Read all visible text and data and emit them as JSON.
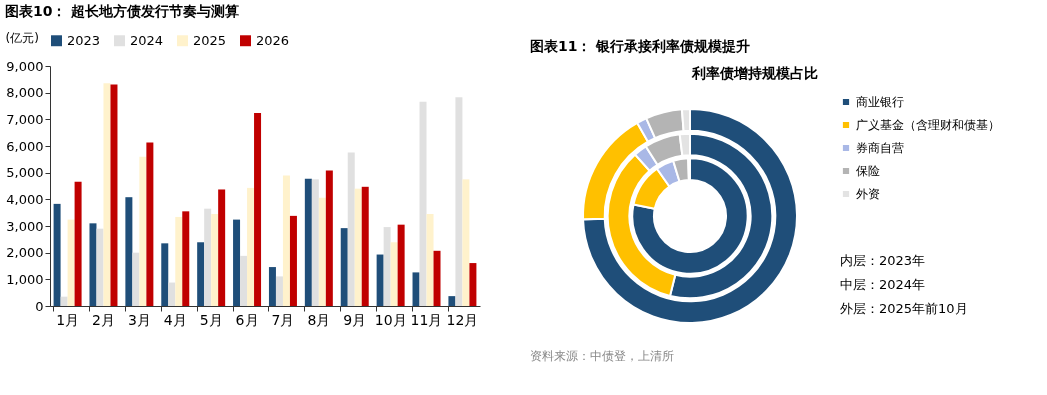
{
  "chart_data": [
    {
      "type": "bar",
      "title": "图表10：  超长地方债发行节奏与测算",
      "ylabel": "(亿元)",
      "categories": [
        "1月",
        "2月",
        "3月",
        "4月",
        "5月",
        "6月",
        "7月",
        "8月",
        "9月",
        "10月",
        "11月",
        "12月"
      ],
      "series": [
        {
          "name": "2023",
          "color": "#1f4e79",
          "values": [
            3830,
            3100,
            4080,
            2350,
            2390,
            3240,
            1460,
            4770,
            2920,
            1930,
            1260,
            370
          ]
        },
        {
          "name": "2024",
          "color": "#e0e0e0",
          "values": [
            350,
            2900,
            2000,
            880,
            3650,
            1880,
            1110,
            4750,
            5760,
            2960,
            7660,
            7830
          ]
        },
        {
          "name": "2025",
          "color": "#fff2cc",
          "values": [
            3240,
            8350,
            5600,
            3340,
            3450,
            4430,
            4890,
            4060,
            4400,
            2390,
            3450,
            4750
          ]
        },
        {
          "name": "2026",
          "color": "#c00000",
          "values": [
            4660,
            8310,
            6130,
            3550,
            4370,
            7240,
            3380,
            5080,
            4470,
            3050,
            2070,
            1610
          ]
        }
      ],
      "ylim": [
        0,
        9000
      ],
      "yticks": [
        0,
        {
          "value": 1000,
          "label": "1,000"
        },
        {
          "value": 2000,
          "label": "2,000"
        },
        {
          "value": 3000,
          "label": "3,000"
        },
        {
          "value": 4000,
          "label": "4,000"
        },
        {
          "value": 5000,
          "label": "5,000"
        },
        {
          "value": 6000,
          "label": "6,000"
        },
        {
          "value": 7000,
          "label": "7,000"
        },
        {
          "value": 8000,
          "label": "8,000"
        },
        {
          "value": 9000,
          "label": "9,000"
        }
      ],
      "legend": "top",
      "grid": false
    },
    {
      "type": "donut",
      "title": "图表11：  银行承接利率债规模提升",
      "subtitle": "利率债增持规模占比",
      "categories": [
        "商业银行",
        "广义基金（含理财和债基）",
        "券商自营",
        "保险",
        "外资"
      ],
      "colors": [
        "#1f4e79",
        "#ffc000",
        "#a9b8e6",
        "#b4b4b4",
        "#e3e3e3"
      ],
      "series": [
        {
          "values": [
            78.2,
            12.1,
            5.0,
            4.2,
            0.5
          ]
        },
        {
          "values": [
            53.9,
            34.5,
            2.6,
            7.0,
            2.0
          ]
        },
        {
          "values": [
            74.5,
            17.3,
            1.5,
            5.5,
            1.2
          ]
        }
      ],
      "legend": "right",
      "annotations": [
        "内层：2023年",
        "中层：2024年",
        "外层：2025年前10月",
        "资料来源：中债登，上清所"
      ]
    }
  ]
}
